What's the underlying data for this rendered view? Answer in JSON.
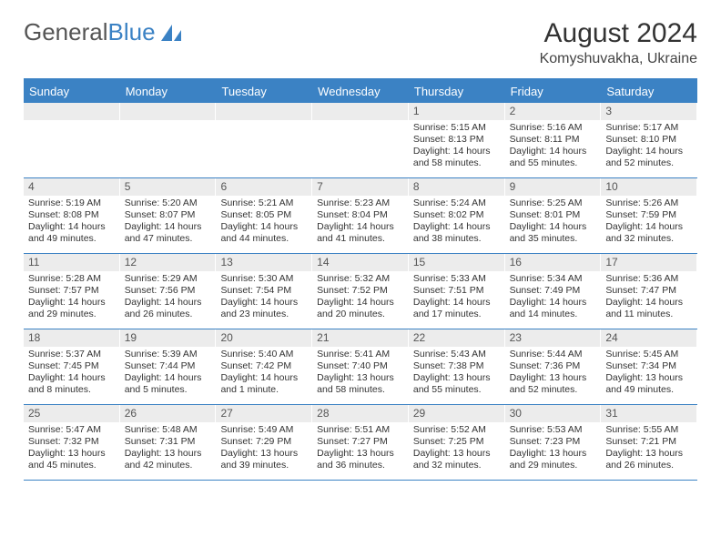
{
  "logo": {
    "text1": "General",
    "text2": "Blue",
    "color1": "#555555",
    "color2": "#3b82c4"
  },
  "title": "August 2024",
  "location": "Komyshuvakha, Ukraine",
  "colors": {
    "header_bg": "#3b82c4",
    "header_text": "#ffffff",
    "daynum_bg": "#ececec",
    "daynum_text": "#555555",
    "body_text": "#333333",
    "rule": "#3b82c4",
    "page_bg": "#ffffff"
  },
  "fonts": {
    "title_pt": 30,
    "location_pt": 16,
    "dayheader_pt": 13,
    "daynum_pt": 12,
    "body_pt": 10.5
  },
  "day_headers": [
    "Sunday",
    "Monday",
    "Tuesday",
    "Wednesday",
    "Thursday",
    "Friday",
    "Saturday"
  ],
  "weeks": [
    [
      null,
      null,
      null,
      null,
      {
        "n": "1",
        "sunrise": "5:15 AM",
        "sunset": "8:13 PM",
        "daylight": "14 hours and 58 minutes."
      },
      {
        "n": "2",
        "sunrise": "5:16 AM",
        "sunset": "8:11 PM",
        "daylight": "14 hours and 55 minutes."
      },
      {
        "n": "3",
        "sunrise": "5:17 AM",
        "sunset": "8:10 PM",
        "daylight": "14 hours and 52 minutes."
      }
    ],
    [
      {
        "n": "4",
        "sunrise": "5:19 AM",
        "sunset": "8:08 PM",
        "daylight": "14 hours and 49 minutes."
      },
      {
        "n": "5",
        "sunrise": "5:20 AM",
        "sunset": "8:07 PM",
        "daylight": "14 hours and 47 minutes."
      },
      {
        "n": "6",
        "sunrise": "5:21 AM",
        "sunset": "8:05 PM",
        "daylight": "14 hours and 44 minutes."
      },
      {
        "n": "7",
        "sunrise": "5:23 AM",
        "sunset": "8:04 PM",
        "daylight": "14 hours and 41 minutes."
      },
      {
        "n": "8",
        "sunrise": "5:24 AM",
        "sunset": "8:02 PM",
        "daylight": "14 hours and 38 minutes."
      },
      {
        "n": "9",
        "sunrise": "5:25 AM",
        "sunset": "8:01 PM",
        "daylight": "14 hours and 35 minutes."
      },
      {
        "n": "10",
        "sunrise": "5:26 AM",
        "sunset": "7:59 PM",
        "daylight": "14 hours and 32 minutes."
      }
    ],
    [
      {
        "n": "11",
        "sunrise": "5:28 AM",
        "sunset": "7:57 PM",
        "daylight": "14 hours and 29 minutes."
      },
      {
        "n": "12",
        "sunrise": "5:29 AM",
        "sunset": "7:56 PM",
        "daylight": "14 hours and 26 minutes."
      },
      {
        "n": "13",
        "sunrise": "5:30 AM",
        "sunset": "7:54 PM",
        "daylight": "14 hours and 23 minutes."
      },
      {
        "n": "14",
        "sunrise": "5:32 AM",
        "sunset": "7:52 PM",
        "daylight": "14 hours and 20 minutes."
      },
      {
        "n": "15",
        "sunrise": "5:33 AM",
        "sunset": "7:51 PM",
        "daylight": "14 hours and 17 minutes."
      },
      {
        "n": "16",
        "sunrise": "5:34 AM",
        "sunset": "7:49 PM",
        "daylight": "14 hours and 14 minutes."
      },
      {
        "n": "17",
        "sunrise": "5:36 AM",
        "sunset": "7:47 PM",
        "daylight": "14 hours and 11 minutes."
      }
    ],
    [
      {
        "n": "18",
        "sunrise": "5:37 AM",
        "sunset": "7:45 PM",
        "daylight": "14 hours and 8 minutes."
      },
      {
        "n": "19",
        "sunrise": "5:39 AM",
        "sunset": "7:44 PM",
        "daylight": "14 hours and 5 minutes."
      },
      {
        "n": "20",
        "sunrise": "5:40 AM",
        "sunset": "7:42 PM",
        "daylight": "14 hours and 1 minute."
      },
      {
        "n": "21",
        "sunrise": "5:41 AM",
        "sunset": "7:40 PM",
        "daylight": "13 hours and 58 minutes."
      },
      {
        "n": "22",
        "sunrise": "5:43 AM",
        "sunset": "7:38 PM",
        "daylight": "13 hours and 55 minutes."
      },
      {
        "n": "23",
        "sunrise": "5:44 AM",
        "sunset": "7:36 PM",
        "daylight": "13 hours and 52 minutes."
      },
      {
        "n": "24",
        "sunrise": "5:45 AM",
        "sunset": "7:34 PM",
        "daylight": "13 hours and 49 minutes."
      }
    ],
    [
      {
        "n": "25",
        "sunrise": "5:47 AM",
        "sunset": "7:32 PM",
        "daylight": "13 hours and 45 minutes."
      },
      {
        "n": "26",
        "sunrise": "5:48 AM",
        "sunset": "7:31 PM",
        "daylight": "13 hours and 42 minutes."
      },
      {
        "n": "27",
        "sunrise": "5:49 AM",
        "sunset": "7:29 PM",
        "daylight": "13 hours and 39 minutes."
      },
      {
        "n": "28",
        "sunrise": "5:51 AM",
        "sunset": "7:27 PM",
        "daylight": "13 hours and 36 minutes."
      },
      {
        "n": "29",
        "sunrise": "5:52 AM",
        "sunset": "7:25 PM",
        "daylight": "13 hours and 32 minutes."
      },
      {
        "n": "30",
        "sunrise": "5:53 AM",
        "sunset": "7:23 PM",
        "daylight": "13 hours and 29 minutes."
      },
      {
        "n": "31",
        "sunrise": "5:55 AM",
        "sunset": "7:21 PM",
        "daylight": "13 hours and 26 minutes."
      }
    ]
  ],
  "labels": {
    "sunrise": "Sunrise:",
    "sunset": "Sunset:",
    "daylight": "Daylight:"
  }
}
